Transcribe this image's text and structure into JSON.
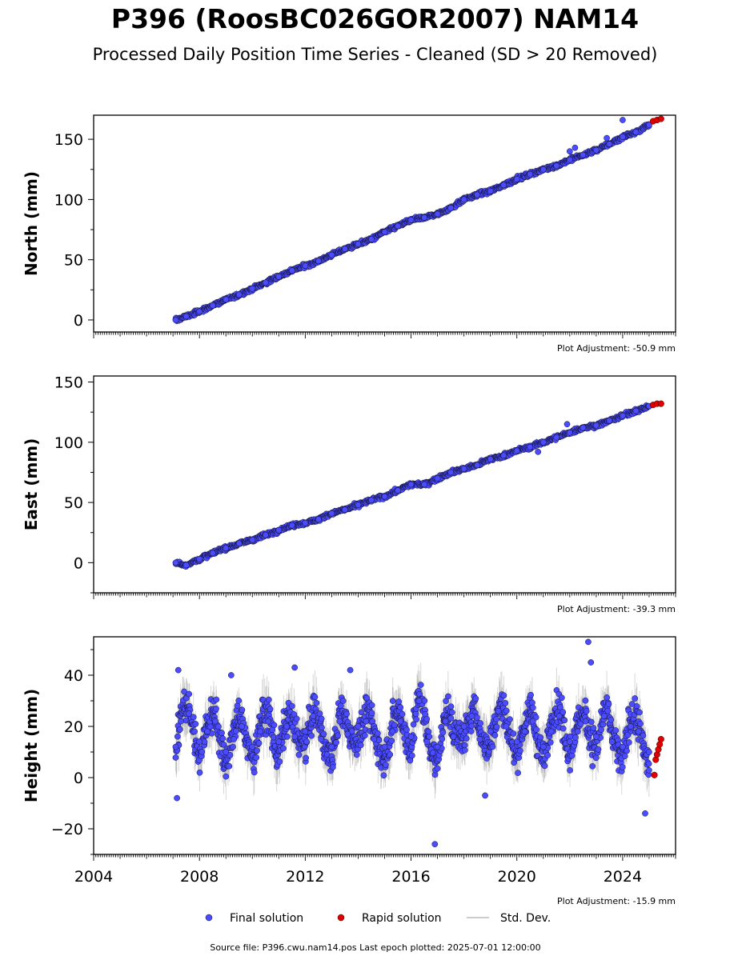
{
  "chart_data": {
    "type": "scatter",
    "title": "P396 (RoosBC026GOR2007) NAM14",
    "subtitle": "Processed Daily Position Time Series - Cleaned (SD > 20 Removed)",
    "source_note": "Source file: P396.cwu.nam14.pos  Last epoch plotted: 2025-07-01 12:00:00",
    "xlim": [
      2004.0,
      2026.0
    ],
    "x_ticks": [
      2004,
      2008,
      2012,
      2016,
      2020,
      2024
    ],
    "legend": {
      "placement": "bottom",
      "items": [
        {
          "label": "Final solution",
          "color": "#4b4bff"
        },
        {
          "label": "Rapid solution",
          "color": "#e00000"
        },
        {
          "label": "Std. Dev.",
          "color": "#bbbbbb"
        }
      ]
    },
    "panels": [
      {
        "ylabel": "North (mm)",
        "ylim": [
          -10,
          170
        ],
        "y_ticks": [
          0,
          50,
          100,
          150
        ],
        "adjustment": "Plot Adjustment: -50.9 mm",
        "series": [
          {
            "name": "Final solution",
            "x": [
              2007.1,
              2007.5,
              2008.0,
              2008.5,
              2009.0,
              2009.5,
              2010.0,
              2010.5,
              2011.0,
              2011.5,
              2012.0,
              2012.5,
              2013.0,
              2013.5,
              2014.0,
              2014.5,
              2015.0,
              2015.5,
              2016.0,
              2016.5,
              2017.0,
              2017.5,
              2018.0,
              2018.5,
              2019.0,
              2019.5,
              2020.0,
              2020.5,
              2021.0,
              2021.5,
              2022.0,
              2022.5,
              2023.0,
              2023.5,
              2024.0,
              2024.5,
              2025.0
            ],
            "y": [
              0,
              3,
              7,
              12,
              17,
              21,
              26,
              31,
              36,
              41,
              45,
              49,
              54,
              59,
              63,
              67,
              73,
              78,
              83,
              85,
              88,
              93,
              100,
              104,
              107,
              112,
              117,
              121,
              125,
              128,
              133,
              137,
              141,
              146,
              152,
              156,
              162
            ]
          },
          {
            "name": "Rapid solution",
            "x": [
              2025.15,
              2025.3,
              2025.45
            ],
            "y": [
              165,
              166,
              167
            ]
          }
        ],
        "outliers": {
          "x": [
            2022.0,
            2022.2,
            2023.4,
            2024.0
          ],
          "y": [
            140,
            143,
            151,
            166
          ]
        }
      },
      {
        "ylabel": "East (mm)",
        "ylim": [
          -25,
          155
        ],
        "y_ticks": [
          0,
          50,
          100,
          150
        ],
        "adjustment": "Plot Adjustment: -39.3 mm",
        "series": [
          {
            "name": "Final solution",
            "x": [
              2007.1,
              2007.5,
              2008.0,
              2008.5,
              2009.0,
              2009.5,
              2010.0,
              2010.5,
              2011.0,
              2011.5,
              2012.0,
              2012.5,
              2013.0,
              2013.5,
              2014.0,
              2014.5,
              2015.0,
              2015.5,
              2016.0,
              2016.5,
              2017.0,
              2017.5,
              2018.0,
              2018.5,
              2019.0,
              2019.5,
              2020.0,
              2020.5,
              2021.0,
              2021.5,
              2022.0,
              2022.5,
              2023.0,
              2023.5,
              2024.0,
              2024.5,
              2025.0
            ],
            "y": [
              0,
              -2,
              3,
              8,
              12,
              16,
              19,
              23,
              27,
              31,
              33,
              36,
              41,
              44,
              48,
              52,
              55,
              60,
              65,
              65,
              70,
              75,
              78,
              81,
              86,
              89,
              93,
              96,
              100,
              104,
              108,
              112,
              114,
              118,
              122,
              126,
              130
            ]
          },
          {
            "name": "Rapid solution",
            "x": [
              2025.15,
              2025.3,
              2025.45
            ],
            "y": [
              131,
              132,
              132
            ]
          }
        ],
        "outliers": {
          "x": [
            2021.9,
            2020.8
          ],
          "y": [
            115,
            92
          ]
        }
      },
      {
        "ylabel": "Height (mm)",
        "ylim": [
          -30,
          55
        ],
        "y_ticks": [
          -20,
          0,
          20,
          40
        ],
        "adjustment": "Plot Adjustment: -15.9 mm",
        "series": [
          {
            "name": "Final solution",
            "x": [
              2007.1,
              2007.3,
              2007.6,
              2008.0,
              2008.3,
              2008.6,
              2009.0,
              2009.3,
              2009.6,
              2010.0,
              2010.3,
              2010.6,
              2011.0,
              2011.3,
              2011.6,
              2012.0,
              2012.3,
              2012.6,
              2013.0,
              2013.3,
              2013.6,
              2014.0,
              2014.3,
              2014.6,
              2015.0,
              2015.3,
              2015.6,
              2016.0,
              2016.3,
              2016.6,
              2017.0,
              2017.3,
              2017.6,
              2018.0,
              2018.3,
              2018.6,
              2019.0,
              2019.3,
              2019.6,
              2020.0,
              2020.3,
              2020.6,
              2021.0,
              2021.3,
              2021.6,
              2022.0,
              2022.3,
              2022.6,
              2023.0,
              2023.3,
              2023.6,
              2024.0,
              2024.3,
              2024.6,
              2025.0
            ],
            "y": [
              12,
              22,
              25,
              14,
              18,
              22,
              10,
              15,
              20,
              12,
              18,
              22,
              14,
              20,
              16,
              18,
              24,
              15,
              12,
              22,
              17,
              20,
              22,
              15,
              12,
              18,
              22,
              16,
              30,
              14,
              12,
              22,
              16,
              20,
              24,
              15,
              18,
              26,
              20,
              14,
              18,
              22,
              12,
              18,
              24,
              14,
              18,
              22,
              16,
              24,
              14,
              12,
              20,
              18,
              10
            ]
          },
          {
            "name": "Rapid solution",
            "x": [
              2025.2,
              2025.25,
              2025.3,
              2025.35,
              2025.4,
              2025.45
            ],
            "y": [
              1,
              7,
              9,
              11,
              13,
              15
            ]
          }
        ],
        "outliers": {
          "x": [
            2007.15,
            2007.2,
            2011.6,
            2013.7,
            2016.9,
            2022.7,
            2022.8,
            2024.85,
            2009.2,
            2018.8
          ],
          "y": [
            -8,
            42,
            43,
            42,
            -26,
            53,
            45,
            -14,
            40,
            -7
          ]
        }
      }
    ]
  }
}
